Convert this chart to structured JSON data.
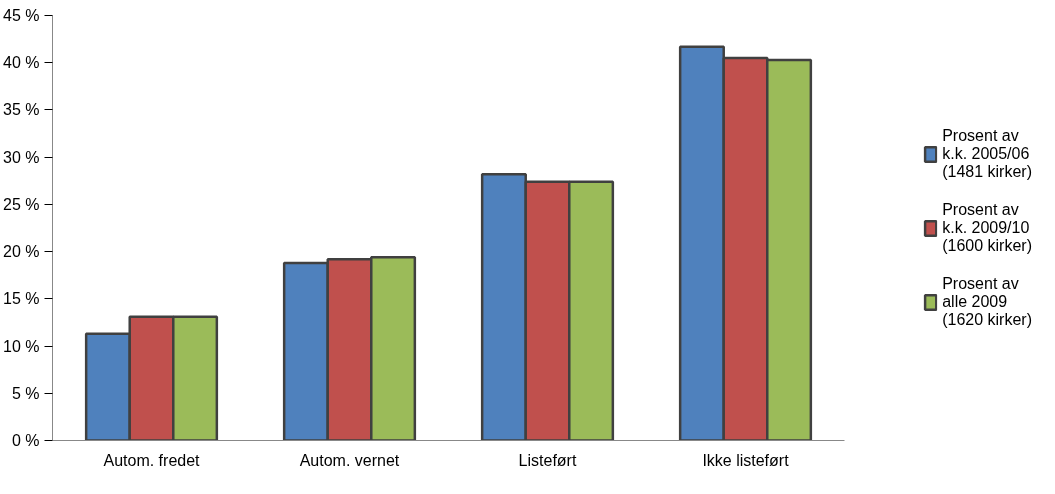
{
  "chart_data": {
    "type": "bar",
    "categories": [
      "Autom. fredet",
      "Autom. vernet",
      "Listeført",
      "Ikke listeført"
    ],
    "series": [
      {
        "name": "Prosent av k.k. 2005/06 (1481 kirker)",
        "color": "#4f81bd",
        "values": [
          11.3,
          18.8,
          28.2,
          41.7
        ]
      },
      {
        "name": "Prosent av k.k. 2009/10 (1600 kirker)",
        "color": "#c0504d",
        "values": [
          13.1,
          19.2,
          27.4,
          40.5
        ]
      },
      {
        "name": "Prosent av alle 2009 (1620 kirker)",
        "color": "#9bbb59",
        "values": [
          13.1,
          19.4,
          27.4,
          40.3
        ]
      }
    ],
    "ylim": [
      0,
      45
    ],
    "yticks": [
      {
        "value": 0,
        "label": "0 %"
      },
      {
        "value": 5,
        "label": "5 %"
      },
      {
        "value": 10,
        "label": "10 %"
      },
      {
        "value": 15,
        "label": "15 %"
      },
      {
        "value": 20,
        "label": "20 %"
      },
      {
        "value": 25,
        "label": "25 %"
      },
      {
        "value": 30,
        "label": "30 %"
      },
      {
        "value": 35,
        "label": "35 %"
      },
      {
        "value": 40,
        "label": "40 %"
      },
      {
        "value": 45,
        "label": "45 %"
      }
    ],
    "grid": false,
    "legend": "right"
  }
}
